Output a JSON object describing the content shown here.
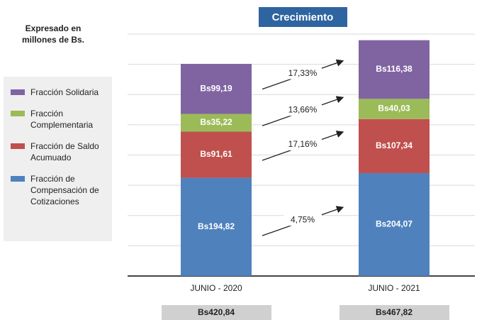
{
  "chart_data": {
    "type": "stacked_bar",
    "title": "Crecimiento",
    "subtitle": "Expresado en millones de Bs.",
    "categories": [
      "JUNIO - 2020",
      "JUNIO - 2021"
    ],
    "series": [
      {
        "name": "Fracción de Compensación de Cotizaciones",
        "color": "#4f81bd",
        "values": [
          194.82,
          204.07
        ],
        "value_labels": [
          "Bs194,82",
          "Bs204,07"
        ],
        "growth": {
          "value": 4.75,
          "label": "4,75%"
        }
      },
      {
        "name": "Fracción de Saldo Acumuado",
        "color": "#c0504d",
        "values": [
          91.61,
          107.34
        ],
        "value_labels": [
          "Bs91,61",
          "Bs107,34"
        ],
        "growth": {
          "value": 17.16,
          "label": "17,16%"
        }
      },
      {
        "name": "Fracción Complementaria",
        "color": "#9bbb59",
        "values": [
          35.22,
          40.03
        ],
        "value_labels": [
          "Bs35,22",
          "Bs40,03"
        ],
        "growth": {
          "value": 13.66,
          "label": "13,66%"
        }
      },
      {
        "name": "Fracción Solidaria",
        "color": "#8064a2",
        "values": [
          99.19,
          116.38
        ],
        "value_labels": [
          "Bs99,19",
          "Bs116,38"
        ],
        "growth": {
          "value": 17.33,
          "label": "17,33%"
        }
      }
    ],
    "totals": [
      420.84,
      467.82
    ],
    "total_labels": [
      "Bs420,84",
      "Bs467,82"
    ],
    "ylim": [
      0,
      480
    ],
    "yticks": [
      0,
      60,
      120,
      180,
      240,
      300,
      360,
      420,
      480
    ],
    "grid": true
  }
}
